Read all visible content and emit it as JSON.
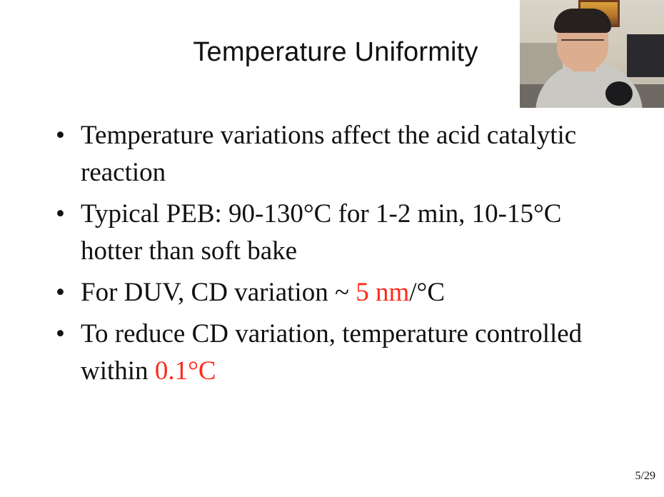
{
  "slide": {
    "title": "Temperature Uniformity",
    "page_number": "5/29",
    "bullets": [
      {
        "parts": [
          "Temperature variations affect the acid catalytic reaction"
        ]
      },
      {
        "parts": [
          "Typical PEB: 90-130°C for 1-2 min, 10-15°C hotter than soft bake"
        ]
      },
      {
        "parts": [
          "For DUV, CD variation ~ ",
          "5 nm",
          "/°C"
        ]
      },
      {
        "parts": [
          "To reduce CD variation, temperature controlled within ",
          "0.1°C"
        ]
      }
    ]
  },
  "colors": {
    "highlight": "#ff2a1a",
    "text": "#111111",
    "background": "#ffffff"
  }
}
